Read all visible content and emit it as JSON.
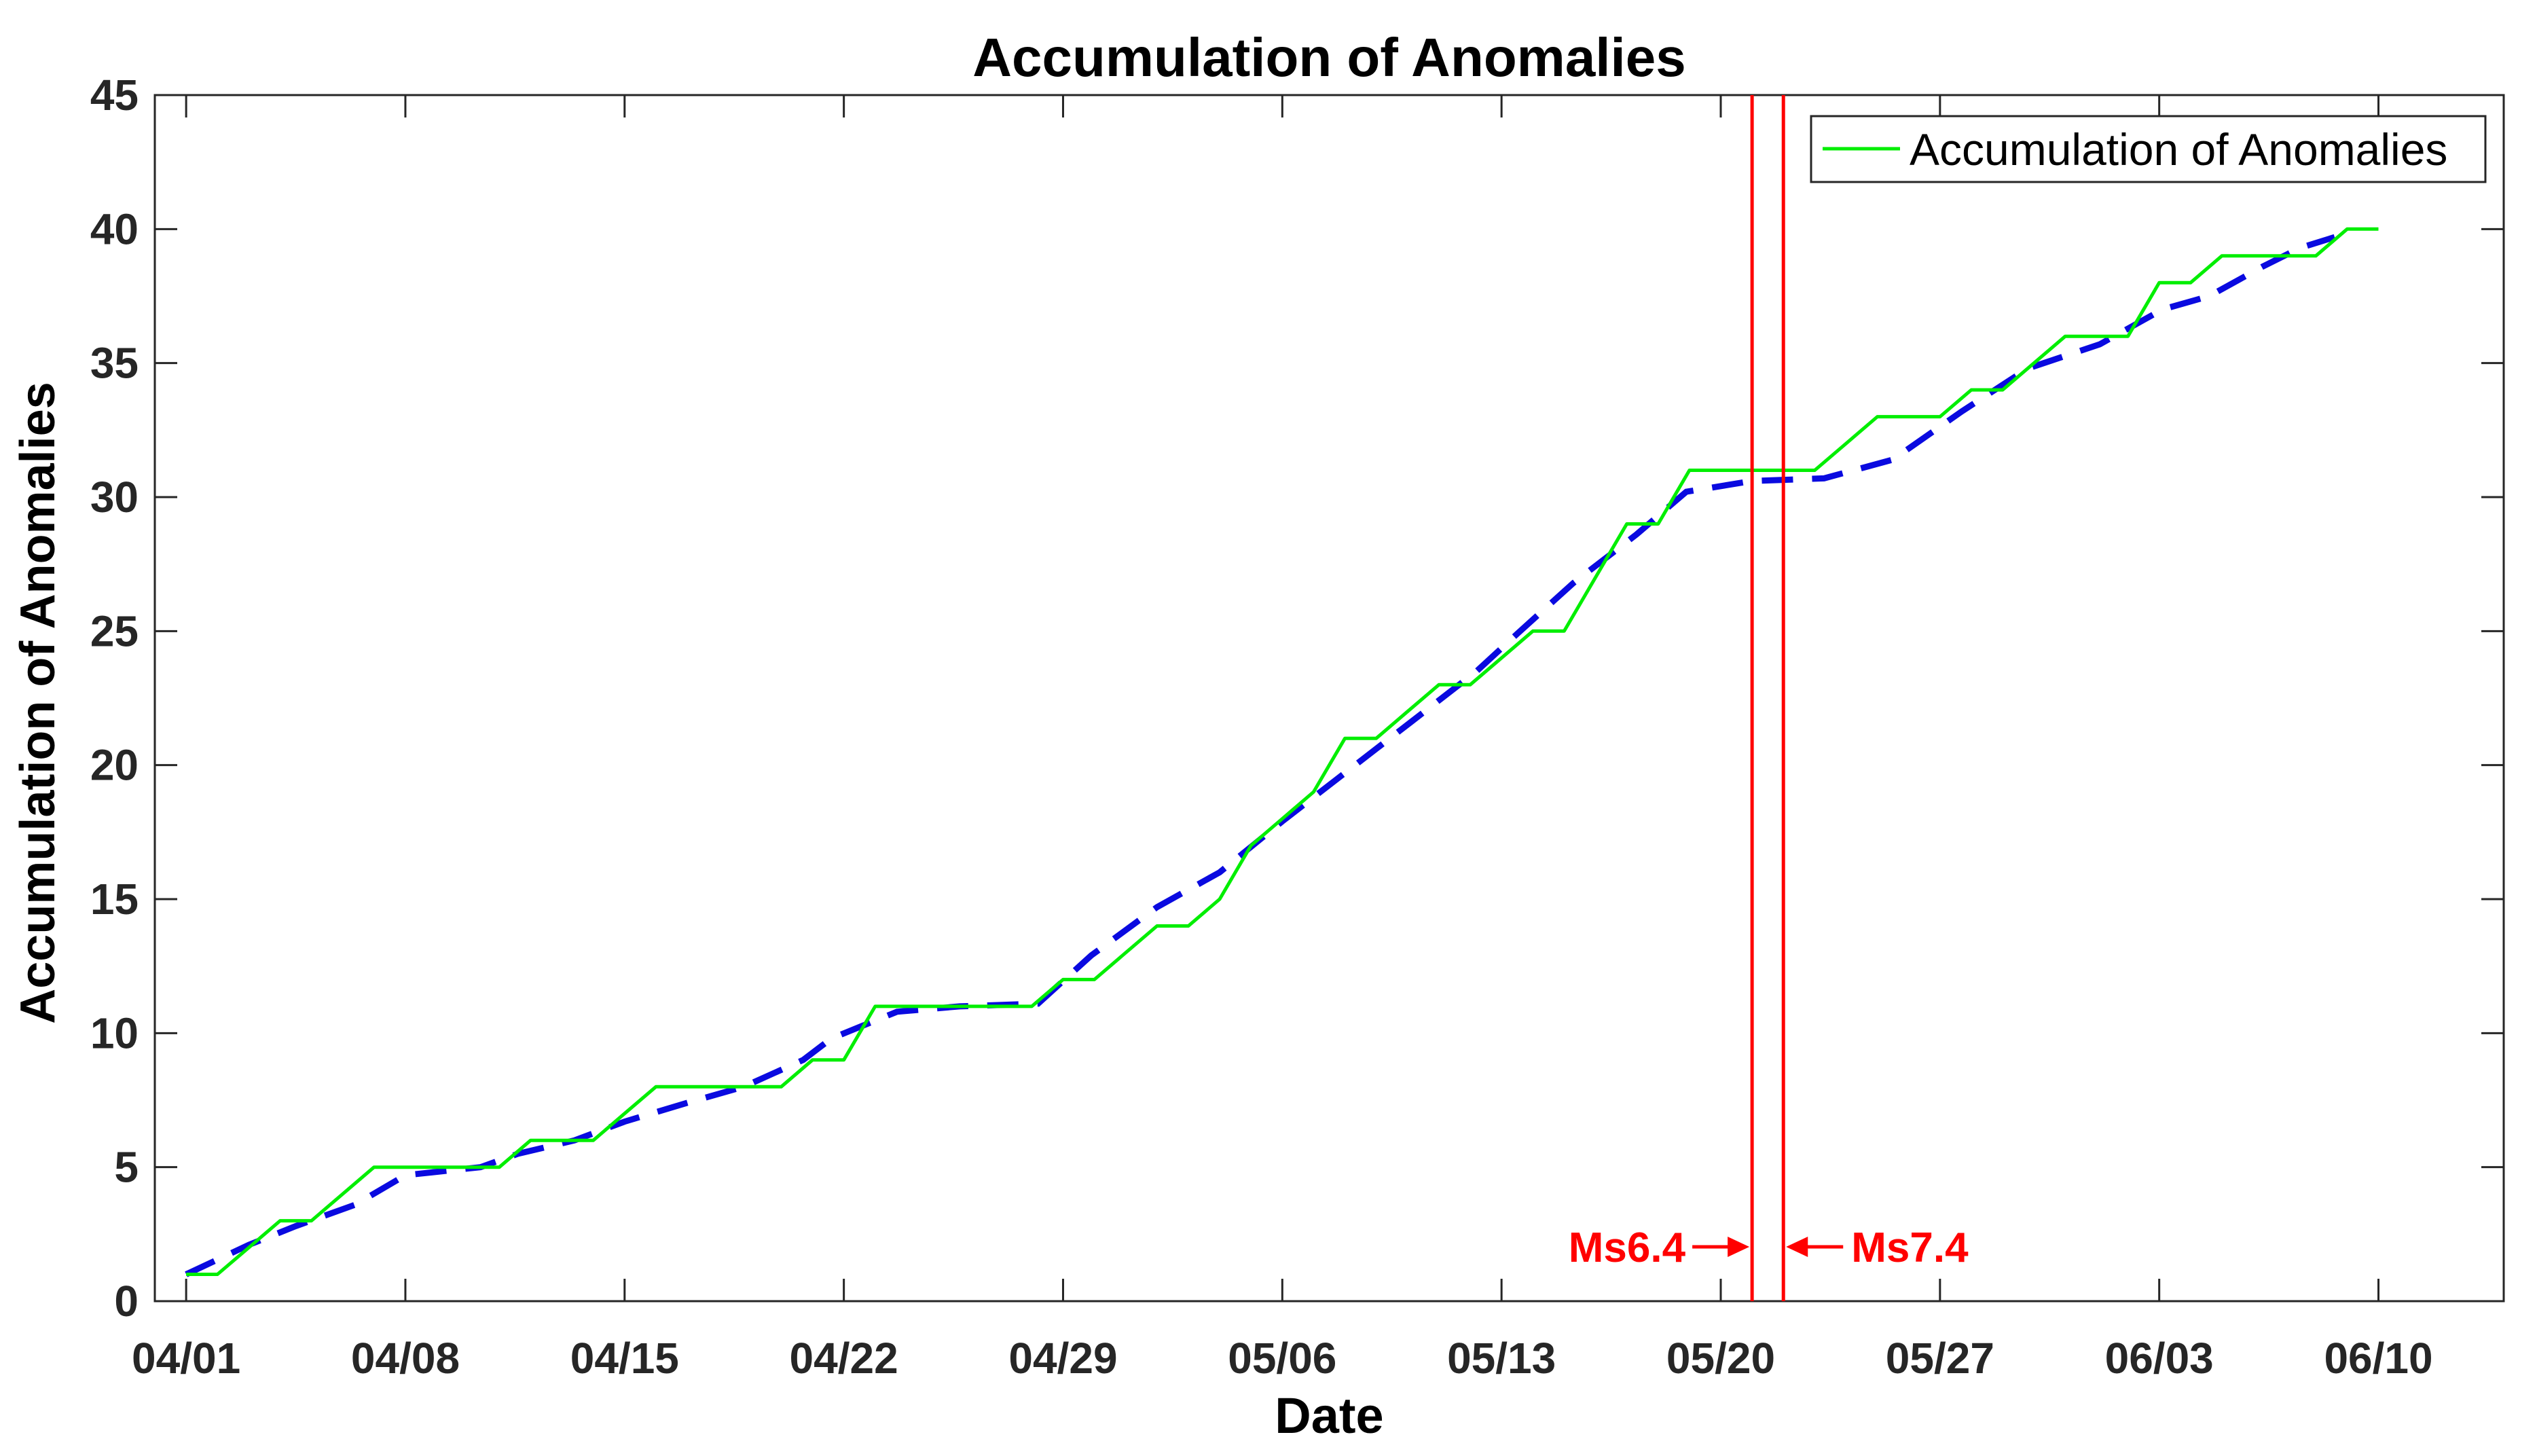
{
  "figure": {
    "background": "#ffffff"
  },
  "chart_data": {
    "type": "line",
    "title": "Accumulation of Anomalies",
    "xlabel": "Date",
    "ylabel": "Accumulation of Anomalies",
    "ylim": [
      0,
      45
    ],
    "y_ticks": [
      0,
      5,
      10,
      15,
      20,
      25,
      30,
      35,
      40,
      45
    ],
    "x_tick_labels": [
      "04/01",
      "04/08",
      "04/15",
      "04/22",
      "04/29",
      "05/06",
      "05/13",
      "05/20",
      "05/27",
      "06/03",
      "06/10"
    ],
    "x_tick_days": [
      0,
      7,
      14,
      21,
      28,
      35,
      42,
      49,
      56,
      63,
      70
    ],
    "grid": false,
    "axis_color": "#262626",
    "legend": {
      "position": "top-right",
      "entries": [
        {
          "label": "Accumulation of Anomalies",
          "color": "#00ee00",
          "style": "solid"
        }
      ]
    },
    "series": [
      {
        "name": "Accumulation of Anomalies",
        "color": "#00ee00",
        "style": "solid",
        "dates": [
          "04/01",
          "04/02",
          "04/03",
          "04/04",
          "04/05",
          "04/06",
          "04/07",
          "04/08",
          "04/09",
          "04/10",
          "04/11",
          "04/12",
          "04/13",
          "04/14",
          "04/15",
          "04/16",
          "04/17",
          "04/18",
          "04/19",
          "04/20",
          "04/21",
          "04/22",
          "04/23",
          "04/24",
          "04/25",
          "04/26",
          "04/27",
          "04/28",
          "04/29",
          "04/30",
          "05/01",
          "05/02",
          "05/03",
          "05/04",
          "05/05",
          "05/06",
          "05/07",
          "05/08",
          "05/09",
          "05/10",
          "05/11",
          "05/12",
          "05/13",
          "05/14",
          "05/15",
          "05/16",
          "05/17",
          "05/18",
          "05/19",
          "05/20",
          "05/21",
          "05/22",
          "05/23",
          "05/24",
          "05/25",
          "05/26",
          "05/27",
          "05/28",
          "05/29",
          "05/30",
          "05/31",
          "06/01",
          "06/02",
          "06/03",
          "06/04",
          "06/05",
          "06/06",
          "06/07",
          "06/08",
          "06/09",
          "06/10"
        ],
        "values": [
          1,
          1,
          2,
          3,
          3,
          4,
          5,
          5,
          5,
          5,
          5,
          6,
          6,
          6,
          7,
          8,
          8,
          8,
          8,
          8,
          9,
          9,
          11,
          11,
          11,
          11,
          11,
          11,
          12,
          12,
          13,
          14,
          14,
          15,
          17,
          18,
          19,
          21,
          21,
          22,
          23,
          23,
          24,
          25,
          25,
          27,
          29,
          29,
          31,
          31,
          31,
          31,
          31,
          32,
          33,
          33,
          33,
          34,
          34,
          35,
          36,
          36,
          36,
          38,
          38,
          39,
          39,
          39,
          39,
          40,
          40
        ]
      },
      {
        "name": "trend",
        "color": "#0a0ae0",
        "style": "dashed",
        "points_day_value": [
          [
            0,
            1.0
          ],
          [
            2,
            2.1
          ],
          [
            3.5,
            2.8
          ],
          [
            5.4,
            3.6
          ],
          [
            7,
            4.7
          ],
          [
            9.4,
            5.0
          ],
          [
            10.6,
            5.5
          ],
          [
            12.4,
            6.0
          ],
          [
            14,
            6.7
          ],
          [
            16,
            7.4
          ],
          [
            17.8,
            8.0
          ],
          [
            19.7,
            9.0
          ],
          [
            20.6,
            9.8
          ],
          [
            22.7,
            10.8
          ],
          [
            24.7,
            11.0
          ],
          [
            27.2,
            11.1
          ],
          [
            28.9,
            12.9
          ],
          [
            31,
            14.7
          ],
          [
            33,
            16.0
          ],
          [
            35,
            17.9
          ],
          [
            37.1,
            19.8
          ],
          [
            39.1,
            21.6
          ],
          [
            41.2,
            23.5
          ],
          [
            42.5,
            24.9
          ],
          [
            44.3,
            26.8
          ],
          [
            46.3,
            28.6
          ],
          [
            47.9,
            30.2
          ],
          [
            50,
            30.6
          ],
          [
            52.3,
            30.7
          ],
          [
            54.5,
            31.4
          ],
          [
            56.7,
            33.2
          ],
          [
            58.8,
            34.8
          ],
          [
            61.1,
            35.7
          ],
          [
            63.1,
            37.0
          ],
          [
            64.6,
            37.5
          ],
          [
            66.3,
            38.6
          ],
          [
            67.5,
            39.3
          ],
          [
            68.6,
            39.7
          ]
        ]
      }
    ],
    "events": [
      {
        "label": "Ms6.4",
        "date": "05/21",
        "day": 50,
        "color": "#ff0000"
      },
      {
        "label": "Ms7.4",
        "date": "05/22",
        "day": 51,
        "color": "#ff0000"
      }
    ]
  }
}
